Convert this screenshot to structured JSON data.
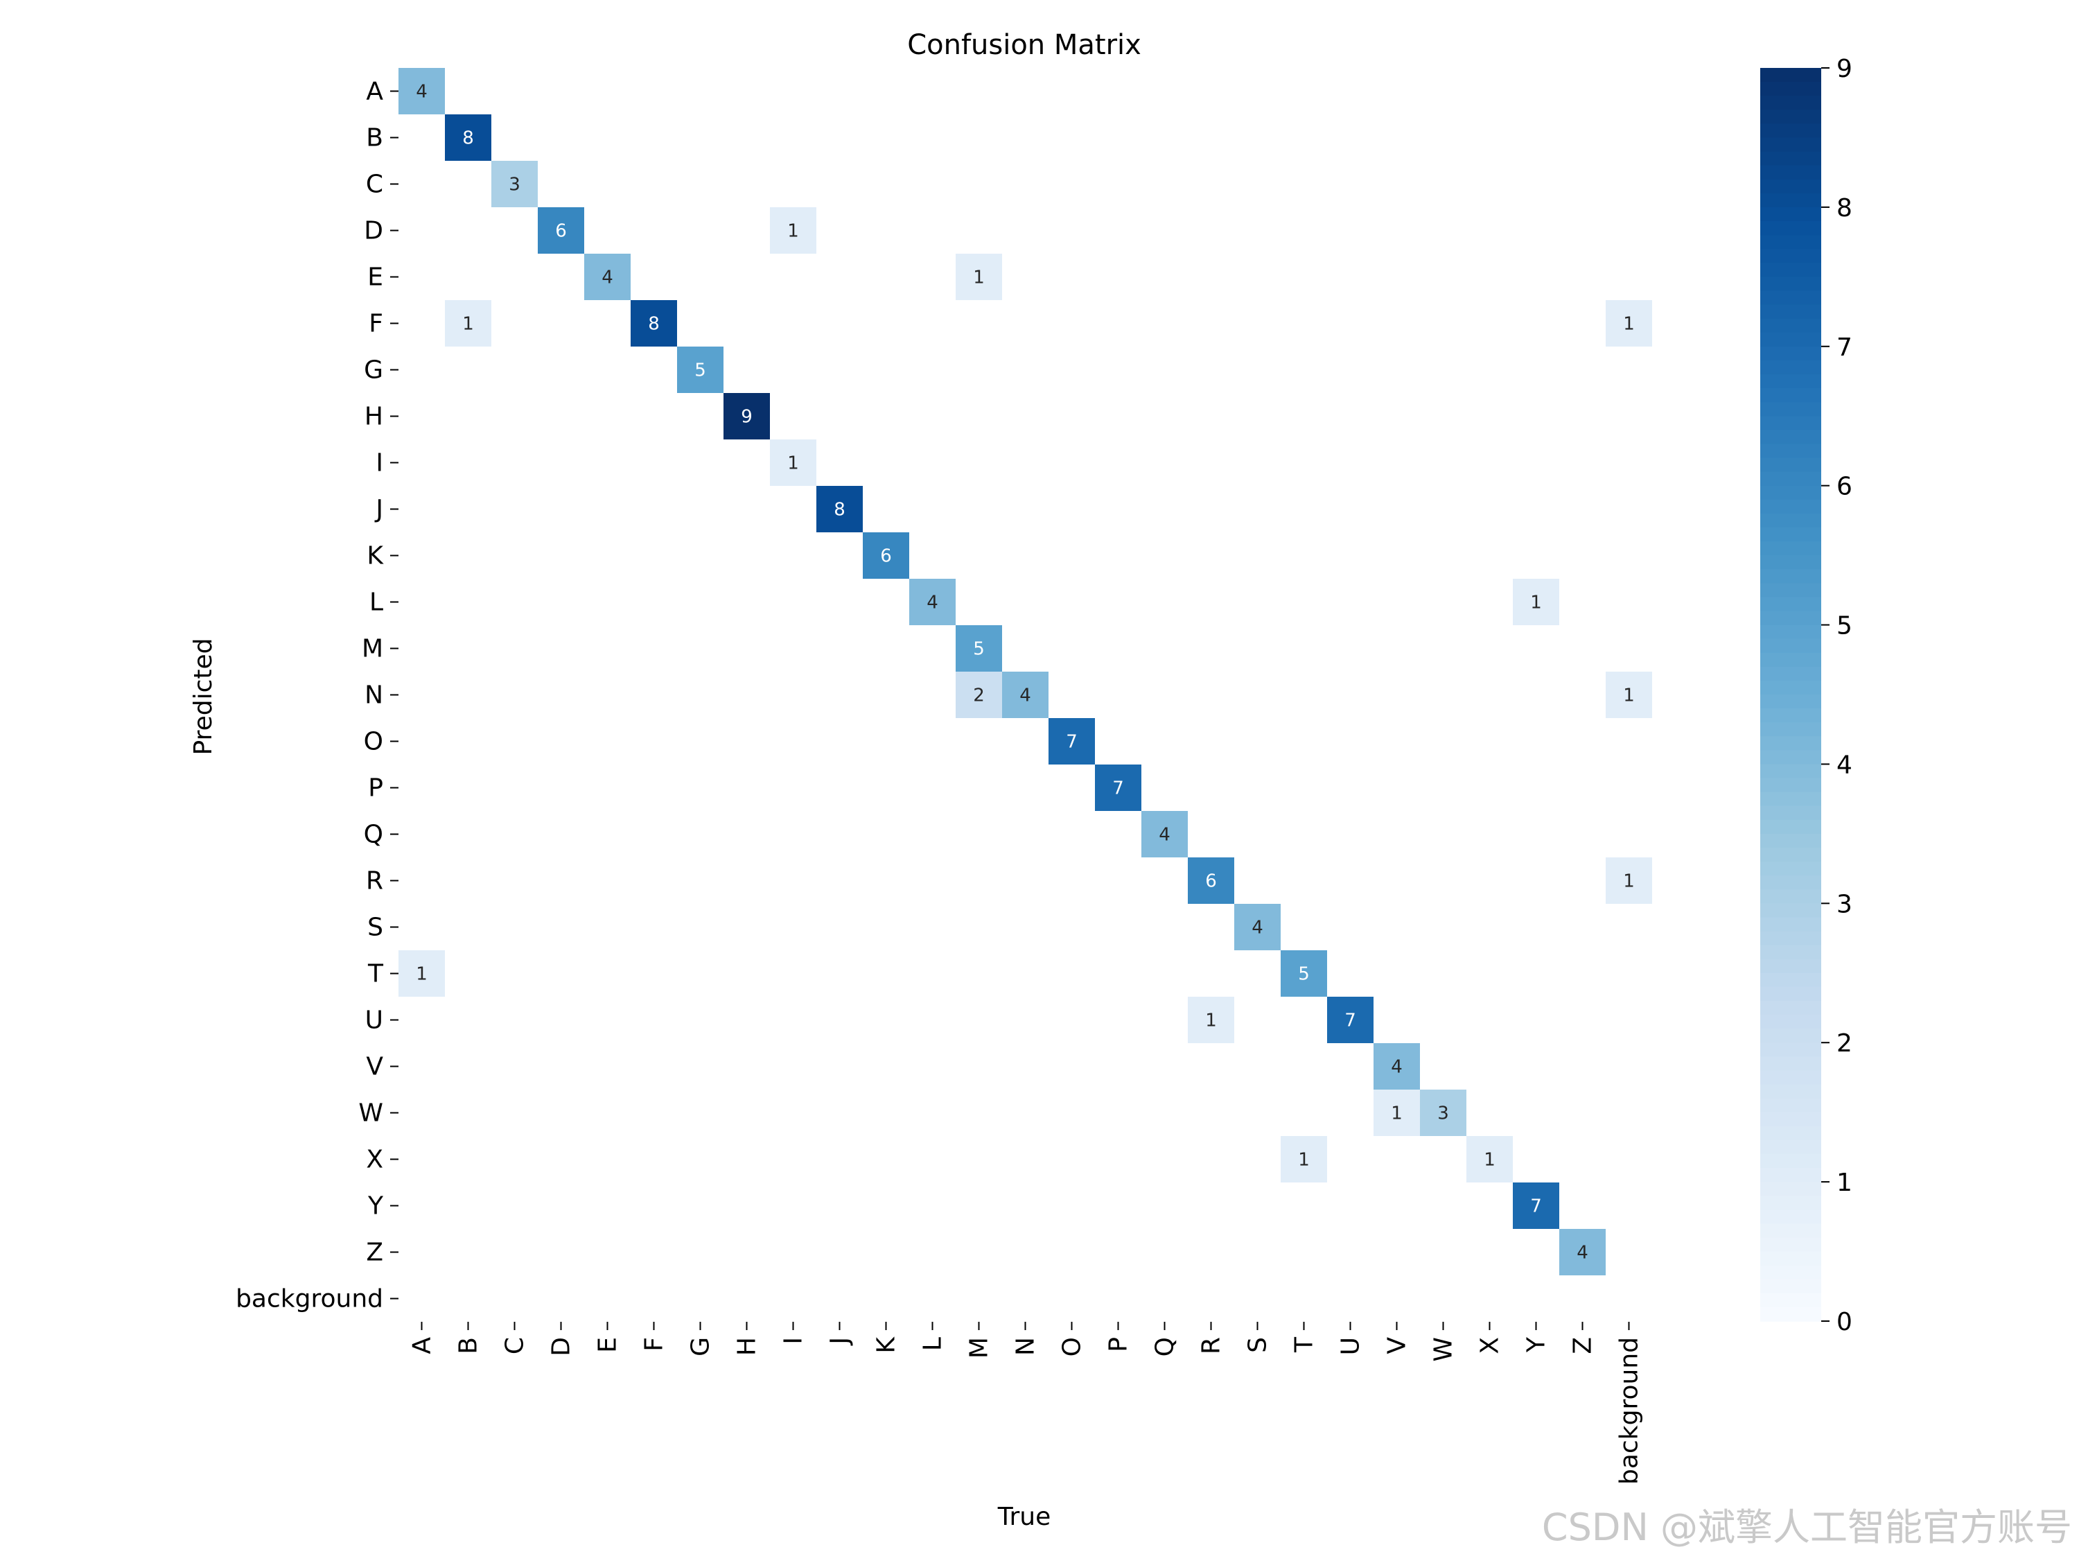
{
  "watermark": "CSDN @斌擎人工智能官方账号",
  "chart_data": {
    "type": "heatmap",
    "title": "Confusion Matrix",
    "xlabel": "True",
    "ylabel": "Predicted",
    "x_categories": [
      "A",
      "B",
      "C",
      "D",
      "E",
      "F",
      "G",
      "H",
      "I",
      "J",
      "K",
      "L",
      "M",
      "N",
      "O",
      "P",
      "Q",
      "R",
      "S",
      "T",
      "U",
      "V",
      "W",
      "X",
      "Y",
      "Z",
      "background"
    ],
    "y_categories": [
      "A",
      "B",
      "C",
      "D",
      "E",
      "F",
      "G",
      "H",
      "I",
      "J",
      "K",
      "L",
      "M",
      "N",
      "O",
      "P",
      "Q",
      "R",
      "S",
      "T",
      "U",
      "V",
      "W",
      "X",
      "Y",
      "Z",
      "background"
    ],
    "cells": [
      {
        "pred": "A",
        "true": "A",
        "value": 4
      },
      {
        "pred": "B",
        "true": "B",
        "value": 8
      },
      {
        "pred": "C",
        "true": "C",
        "value": 3
      },
      {
        "pred": "D",
        "true": "D",
        "value": 6
      },
      {
        "pred": "D",
        "true": "I",
        "value": 1
      },
      {
        "pred": "E",
        "true": "E",
        "value": 4
      },
      {
        "pred": "E",
        "true": "M",
        "value": 1
      },
      {
        "pred": "F",
        "true": "B",
        "value": 1
      },
      {
        "pred": "F",
        "true": "F",
        "value": 8
      },
      {
        "pred": "F",
        "true": "background",
        "value": 1
      },
      {
        "pred": "G",
        "true": "G",
        "value": 5
      },
      {
        "pred": "H",
        "true": "H",
        "value": 9
      },
      {
        "pred": "I",
        "true": "I",
        "value": 1
      },
      {
        "pred": "J",
        "true": "J",
        "value": 8
      },
      {
        "pred": "K",
        "true": "K",
        "value": 6
      },
      {
        "pred": "L",
        "true": "L",
        "value": 4
      },
      {
        "pred": "L",
        "true": "Y",
        "value": 1
      },
      {
        "pred": "M",
        "true": "M",
        "value": 5
      },
      {
        "pred": "N",
        "true": "M",
        "value": 2
      },
      {
        "pred": "N",
        "true": "N",
        "value": 4
      },
      {
        "pred": "N",
        "true": "background",
        "value": 1
      },
      {
        "pred": "O",
        "true": "O",
        "value": 7
      },
      {
        "pred": "P",
        "true": "P",
        "value": 7
      },
      {
        "pred": "Q",
        "true": "Q",
        "value": 4
      },
      {
        "pred": "R",
        "true": "R",
        "value": 6
      },
      {
        "pred": "R",
        "true": "background",
        "value": 1
      },
      {
        "pred": "S",
        "true": "S",
        "value": 4
      },
      {
        "pred": "T",
        "true": "A",
        "value": 1
      },
      {
        "pred": "T",
        "true": "T",
        "value": 5
      },
      {
        "pred": "U",
        "true": "R",
        "value": 1
      },
      {
        "pred": "U",
        "true": "U",
        "value": 7
      },
      {
        "pred": "V",
        "true": "V",
        "value": 4
      },
      {
        "pred": "W",
        "true": "V",
        "value": 1
      },
      {
        "pred": "W",
        "true": "W",
        "value": 3
      },
      {
        "pred": "X",
        "true": "T",
        "value": 1
      },
      {
        "pred": "X",
        "true": "X",
        "value": 1
      },
      {
        "pred": "Y",
        "true": "Y",
        "value": 7
      },
      {
        "pred": "Z",
        "true": "Z",
        "value": 4
      }
    ],
    "colorbar": {
      "range": [
        0,
        9
      ],
      "ticks": [
        0,
        1,
        2,
        3,
        4,
        5,
        6,
        7,
        8,
        9
      ],
      "colormap": "Blues",
      "low_color": "#f7fbff",
      "high_color": "#08306b"
    },
    "zero_cells_blank": true,
    "grid": false
  }
}
